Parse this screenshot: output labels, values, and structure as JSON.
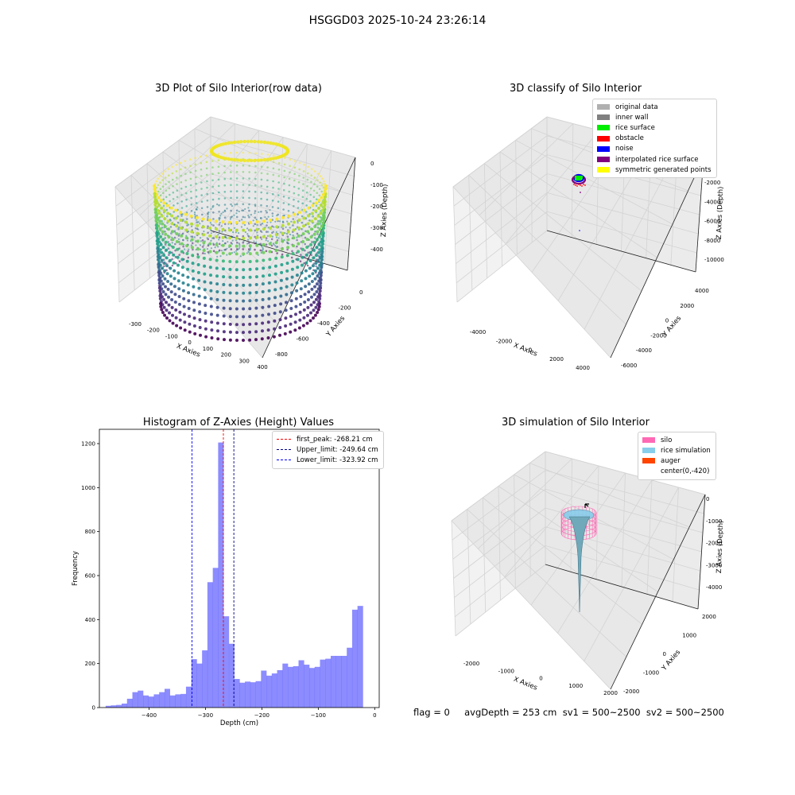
{
  "suptitle": "HSGGD03 2025-10-24 23:26:14",
  "footer": "flag = 0     avgDepth = 253 cm  sv1 = 500~2500  sv2 = 500~2500",
  "chart_data": [
    {
      "type": "scatter",
      "title": "3D Plot of Silo Interior(row data)",
      "xlabel": "X Axies",
      "ylabel": "Y Axies",
      "zlabel": "Z Axies (Depth)",
      "xticks": [
        "-300",
        "-200",
        "-100",
        "0",
        "100",
        "200",
        "300",
        "400"
      ],
      "yticks": [
        "-800",
        "-600",
        "-400",
        "-200",
        "0"
      ],
      "zticks": [
        "0",
        "-100",
        "-200",
        "-300",
        "-400"
      ],
      "xlim": [
        -350,
        400
      ],
      "ylim": [
        -850,
        50
      ],
      "zlim": [
        -480,
        10
      ],
      "colormap": "viridis"
    },
    {
      "type": "scatter",
      "title": "3D classify of Silo Interior",
      "xlabel": "X Axies",
      "ylabel": "Y Axies",
      "zlabel": "Z Axies (Depth)",
      "xticks": [
        "-4000",
        "-2000",
        "0",
        "2000",
        "4000"
      ],
      "yticks": [
        "-6000",
        "-4000",
        "-2000",
        "0",
        "2000",
        "4000"
      ],
      "zticks": [
        "-2000",
        "-4000",
        "-6000",
        "-8000",
        "-10000"
      ],
      "legend": [
        {
          "label": "original data",
          "color": "#b0b0b0"
        },
        {
          "label": "inner wall",
          "color": "#808080"
        },
        {
          "label": "rice surface",
          "color": "#00ee00"
        },
        {
          "label": "obstacle",
          "color": "#ff0000"
        },
        {
          "label": "noise",
          "color": "#0000ff"
        },
        {
          "label": "interpolated rice surface",
          "color": "#800080"
        },
        {
          "label": "symmetric generated points",
          "color": "#ffff00"
        }
      ]
    },
    {
      "type": "bar",
      "title": "Histogram of Z-Axies (Height) Values",
      "xlabel": "Depth (cm)",
      "ylabel": "Frequency",
      "xlim": [
        -488,
        8
      ],
      "ylim": [
        0,
        1265
      ],
      "xticks": [
        -400,
        -300,
        -200,
        -100,
        0
      ],
      "yticks": [
        0,
        200,
        400,
        600,
        800,
        1000,
        1200
      ],
      "bin_start": -477,
      "bin_width": 9.5,
      "values": [
        8,
        10,
        12,
        18,
        40,
        70,
        77,
        55,
        50,
        60,
        70,
        85,
        55,
        60,
        62,
        95,
        220,
        200,
        260,
        570,
        635,
        1205,
        415,
        290,
        130,
        113,
        118,
        115,
        120,
        168,
        145,
        155,
        170,
        200,
        185,
        188,
        215,
        195,
        180,
        185,
        218,
        222,
        235,
        235,
        235,
        272,
        445,
        462
      ],
      "color": "#5555ff",
      "lines": [
        {
          "x": -268.21,
          "color": "#ff0000",
          "label": "first_peak: -268.21 cm"
        },
        {
          "x": -249.64,
          "color": "#00008b",
          "label": "Upper_limit: -249.64 cm"
        },
        {
          "x": -323.92,
          "color": "#0000ff",
          "label": "Lower_limit: -323.92 cm"
        }
      ]
    },
    {
      "type": "surface",
      "title": "3D simulation of Silo Interior",
      "xlabel": "X Axies",
      "ylabel": "Y Axies",
      "zlabel": "Z Axies (Depth)",
      "xticks": [
        "-2000",
        "-1000",
        "0",
        "1000",
        "2000"
      ],
      "yticks": [
        "-2000",
        "-1000",
        "0",
        "1000",
        "2000"
      ],
      "zticks": [
        "0",
        "-1000",
        "-2000",
        "-3000",
        "-4000"
      ],
      "legend": [
        {
          "label": "silo",
          "color": "#ff69b4"
        },
        {
          "label": "rice simulation",
          "color": "#87ceeb"
        },
        {
          "label": "auger",
          "color": "#ff4500"
        },
        {
          "label": "center(0,-420)",
          "color": ""
        }
      ]
    }
  ]
}
